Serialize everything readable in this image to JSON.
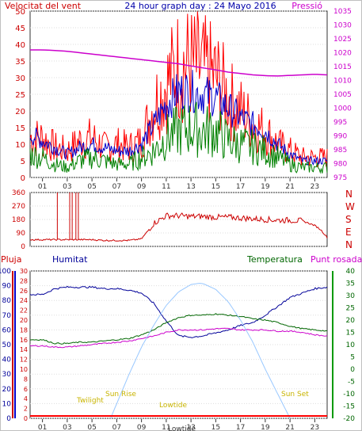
{
  "chart_data": [
    {
      "type": "line",
      "title": "24 hour graph day : 24 Mayo 2016",
      "ylabel_left": "Velocitat del vent",
      "ylabel_right": "Pressió",
      "x_ticks": [
        "01",
        "03",
        "05",
        "07",
        "09",
        "11",
        "13",
        "15",
        "17",
        "19",
        "21",
        "23"
      ],
      "left_axis": {
        "ticks": [
          "0",
          "5",
          "10",
          "15",
          "20",
          "25",
          "30",
          "35",
          "40",
          "45",
          "50"
        ],
        "range": [
          0,
          50
        ]
      },
      "right_axis": {
        "ticks": [
          "975",
          "980",
          "985",
          "990",
          "995",
          "1000",
          "1005",
          "1010",
          "1015",
          "1020",
          "1025",
          "1030",
          "1035"
        ],
        "range": [
          975,
          1035
        ]
      },
      "series": [
        {
          "color": "#ff0000",
          "x": [
            0,
            1,
            2,
            3,
            4,
            5,
            6,
            7,
            8,
            9,
            10,
            11,
            12,
            13,
            14,
            15,
            16,
            17,
            18,
            19,
            20,
            21,
            22,
            23,
            24
          ],
          "values": [
            12,
            12,
            9,
            8,
            11,
            12,
            9,
            10,
            9,
            11,
            22,
            28,
            34,
            34,
            32,
            30,
            24,
            20,
            16,
            14,
            10,
            8,
            6,
            6,
            6
          ]
        },
        {
          "color": "#0000cc",
          "x": [
            0,
            1,
            2,
            3,
            4,
            5,
            6,
            7,
            8,
            9,
            10,
            11,
            12,
            13,
            14,
            15,
            16,
            17,
            18,
            19,
            20,
            21,
            22,
            23,
            24
          ],
          "values": [
            13,
            11,
            9,
            7,
            9,
            10,
            9,
            8,
            8,
            10,
            16,
            22,
            26,
            26,
            25,
            24,
            21,
            18,
            16,
            14,
            10,
            7,
            5,
            5,
            5
          ]
        },
        {
          "color": "#008000",
          "x": [
            0,
            1,
            2,
            3,
            4,
            5,
            6,
            7,
            8,
            9,
            10,
            11,
            12,
            13,
            14,
            15,
            16,
            17,
            18,
            19,
            20,
            21,
            22,
            23,
            24
          ],
          "values": [
            7,
            6,
            4,
            3,
            5,
            6,
            5,
            4,
            4,
            6,
            8,
            12,
            14,
            15,
            14,
            14,
            11,
            10,
            9,
            8,
            6,
            4,
            3,
            3,
            3
          ]
        },
        {
          "color": "#cc00cc",
          "x": [
            0,
            1,
            2,
            3,
            4,
            5,
            6,
            7,
            8,
            9,
            10,
            11,
            12,
            13,
            14,
            15,
            16,
            17,
            18,
            19,
            20,
            21,
            22,
            23,
            24
          ],
          "values": [
            1021,
            1021,
            1020.8,
            1020.5,
            1020,
            1019.5,
            1019,
            1018.5,
            1018,
            1017.5,
            1017,
            1016.5,
            1016,
            1015.2,
            1014.5,
            1013.8,
            1013,
            1012.5,
            1012,
            1011.7,
            1011.6,
            1011.8,
            1012,
            1012.2,
            1012
          ]
        }
      ]
    },
    {
      "type": "line",
      "y_ticks": [
        "0",
        "90",
        "180",
        "270",
        "360"
      ],
      "direction_labels": [
        "N",
        "W",
        "S",
        "E",
        "N"
      ],
      "range": [
        0,
        360
      ],
      "series": [
        {
          "color": "#cc0000",
          "x": [
            0,
            1,
            2,
            3,
            4,
            5,
            6,
            7,
            8,
            9,
            10,
            11,
            12,
            13,
            14,
            15,
            16,
            17,
            18,
            19,
            20,
            21,
            22,
            23,
            23.5,
            24
          ],
          "values": [
            45,
            45,
            45,
            45,
            45,
            45,
            40,
            40,
            40,
            50,
            155,
            205,
            205,
            200,
            200,
            195,
            195,
            190,
            185,
            180,
            175,
            175,
            170,
            140,
            110,
            60
          ]
        }
      ],
      "spikes": [
        2.2,
        3.2,
        3.4,
        3.7,
        3.9
      ]
    },
    {
      "type": "line",
      "labels": {
        "rain": "Pluja",
        "humidity": "Humitat",
        "temperature": "Temperatura",
        "dewpoint": "Punt rosada"
      },
      "rain_axis": {
        "ticks": [
          "0",
          "2",
          "4",
          "6",
          "8",
          "10",
          "12",
          "14",
          "16",
          "18",
          "20",
          "22",
          "24",
          "26",
          "28",
          "30"
        ],
        "range": [
          0,
          30
        ]
      },
      "humidity_axis": {
        "ticks": [
          "0",
          "10",
          "20",
          "30",
          "40",
          "50",
          "60",
          "70",
          "80",
          "90",
          "100"
        ],
        "range": [
          0,
          100
        ]
      },
      "temp_axis": {
        "ticks": [
          "-20",
          "-15",
          "-10",
          "-5",
          "0",
          "5",
          "10",
          "15",
          "20",
          "25",
          "30",
          "35",
          "40"
        ],
        "range": [
          -20,
          40
        ]
      },
      "annotations": {
        "twilight_start": "Twilight",
        "sun_rise": "Sun Rise",
        "sun_set": "Sun Set",
        "lowtide": "Lowtide"
      },
      "series": [
        {
          "color": "#000099",
          "name": "Humitat",
          "x": [
            0,
            1,
            2,
            3,
            4,
            5,
            6,
            7,
            8,
            9,
            10,
            11,
            12,
            13,
            14,
            15,
            16,
            17,
            18,
            19,
            20,
            21,
            22,
            23,
            24
          ],
          "values": [
            84,
            84,
            88,
            89,
            89,
            89,
            88,
            88,
            87,
            85,
            78,
            66,
            56,
            55,
            56,
            58,
            60,
            63,
            65,
            70,
            76,
            82,
            85,
            88,
            89
          ]
        },
        {
          "color": "#006600",
          "name": "Temperatura",
          "x": [
            0,
            1,
            2,
            3,
            4,
            5,
            6,
            7,
            8,
            9,
            10,
            11,
            12,
            13,
            14,
            15,
            16,
            17,
            18,
            19,
            20,
            21,
            22,
            23,
            24
          ],
          "values": [
            12,
            12,
            10.5,
            10.5,
            11,
            11,
            11.5,
            12,
            12.5,
            14,
            16,
            19,
            21,
            22,
            22,
            22.5,
            22,
            21.5,
            20.5,
            20,
            19,
            17.5,
            16.5,
            16,
            15.5
          ]
        },
        {
          "color": "#cc00cc",
          "name": "Punt rosada",
          "x": [
            0,
            1,
            2,
            3,
            4,
            5,
            6,
            7,
            8,
            9,
            10,
            11,
            12,
            13,
            14,
            15,
            16,
            17,
            18,
            19,
            20,
            21,
            22,
            23,
            24
          ],
          "values": [
            9.5,
            9.5,
            9,
            9,
            9.5,
            10,
            10.5,
            11,
            11.5,
            12.5,
            13.5,
            15,
            16,
            16,
            16,
            16.5,
            16.5,
            16,
            16,
            16,
            15.5,
            15.5,
            15,
            14,
            13.5
          ]
        },
        {
          "color": "#99c8ff",
          "name": "solar",
          "x": [
            6.5,
            7,
            8,
            9,
            10,
            11,
            12,
            13,
            13.7,
            14,
            15,
            16,
            17,
            18,
            19,
            20,
            21
          ],
          "values": [
            -20,
            -14,
            -2,
            9,
            18,
            26,
            31.5,
            34.5,
            35,
            34.8,
            32.5,
            27.5,
            20,
            11,
            0,
            -10,
            -20
          ]
        }
      ]
    }
  ]
}
